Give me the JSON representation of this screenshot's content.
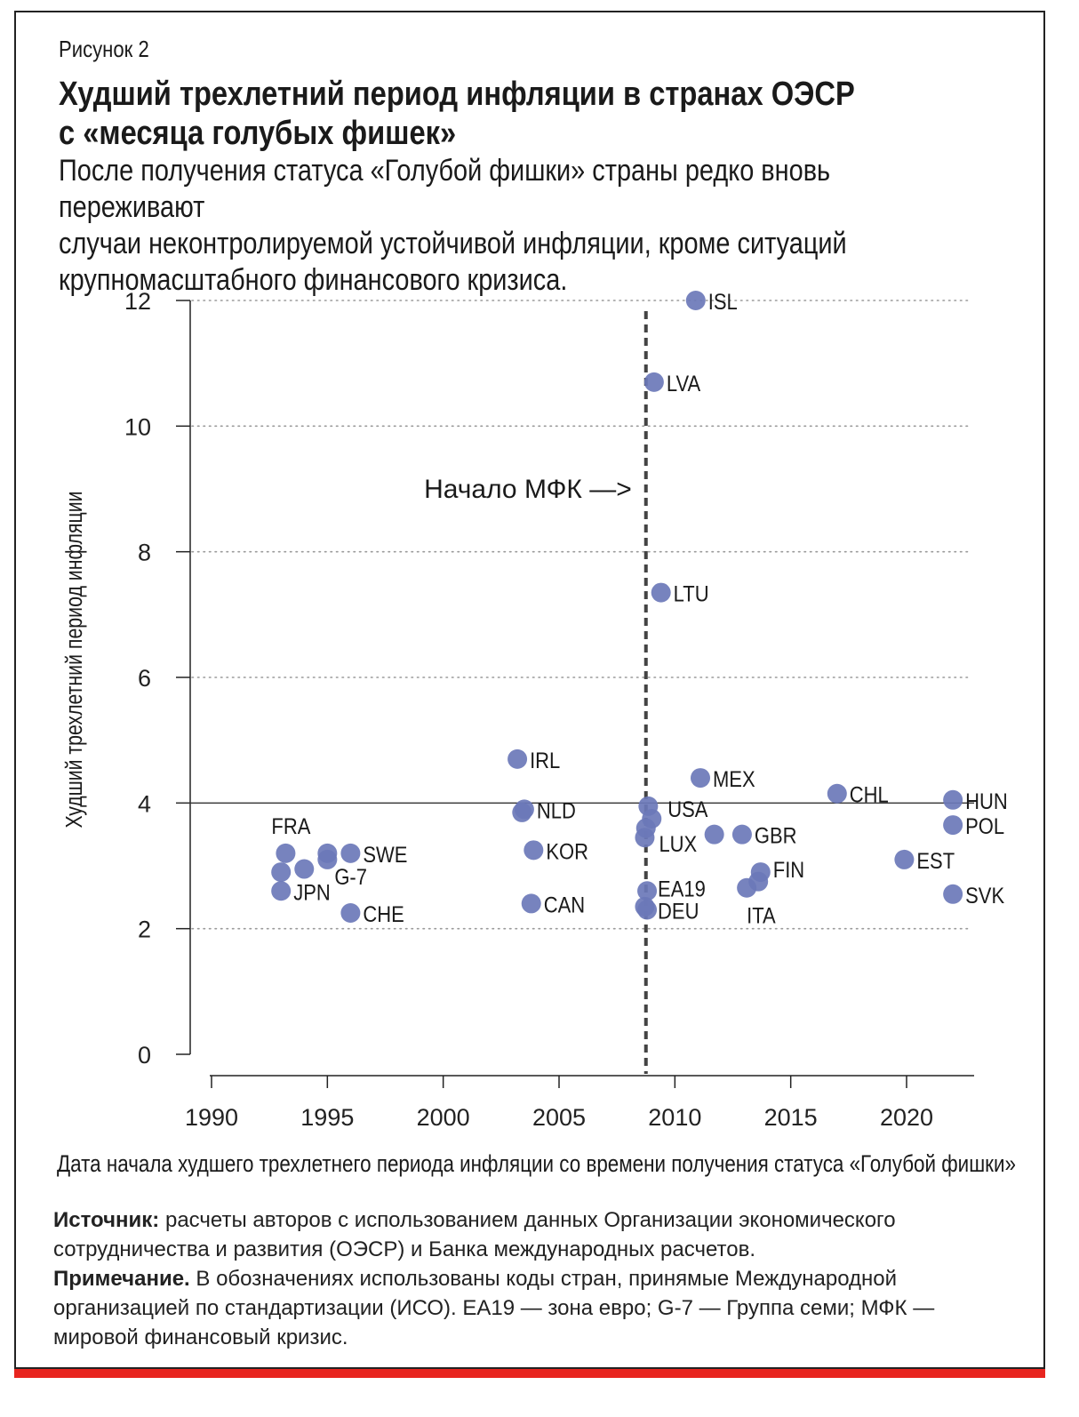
{
  "figure_label": "Рисунок 2",
  "title_line1": "Худший трехлетний период инфляции в странах ОЭСР",
  "title_line2": "с «месяца голубых фишек»",
  "subtitle_line1": "После получения статуса «Голубой фишки» страны редко вновь переживают",
  "subtitle_line2": "случаи неконтролируемой устойчивой инфляции, кроме ситуаций",
  "subtitle_line3": "крупномасштабного финансового кризиса.",
  "source_label": "Источник:",
  "source_text_line1": "расчеты авторов с использованием данных Организации экономического",
  "source_text_line2": "сотрудничества и развития (ОЭСР) и Банка международных расчетов.",
  "note_label": "Примечание.",
  "note_text_line1": "В обозначениях использованы коды стран, принямые Международной",
  "note_text_line2": "организацией по стандартизации (ИСО). EA19 — зона евро; G-7 — Группа семи; МФК —",
  "note_text_line3": "мировой финансовый кризис.",
  "colors": {
    "point": "#6b78b8",
    "accent_red": "#e8251f",
    "axis": "#222222"
  },
  "chart_data": {
    "type": "scatter",
    "xlabel": "Дата начала худшего трехлетнего периода инфляции со времени получения статуса «Голубой фишки»",
    "ylabel": "Худший трехлетний период инфляции",
    "xlim": [
      1989,
      2023
    ],
    "ylim": [
      0,
      12
    ],
    "x_ticks": [
      1990,
      1995,
      2000,
      2005,
      2010,
      2015,
      2020
    ],
    "y_ticks": [
      0,
      2,
      4,
      6,
      8,
      10,
      12
    ],
    "reference_hline": 4,
    "gfc_line_x": 2008.75,
    "gfc_annotation": "Начало МФК —>",
    "points": [
      {
        "label": "ISL",
        "x": 2010.9,
        "y": 12.0
      },
      {
        "label": "LVA",
        "x": 2009.1,
        "y": 10.7
      },
      {
        "label": "LTU",
        "x": 2009.4,
        "y": 7.35
      },
      {
        "label": "IRL",
        "x": 2003.2,
        "y": 4.7
      },
      {
        "label": "MEX",
        "x": 2011.1,
        "y": 4.4
      },
      {
        "label": "CHL",
        "x": 2017.0,
        "y": 4.15
      },
      {
        "label": "HUN",
        "x": 2022.0,
        "y": 4.05
      },
      {
        "label": "",
        "x": 2008.85,
        "y": 3.95
      },
      {
        "label": "NLD",
        "x": 2003.5,
        "y": 3.9
      },
      {
        "label": "",
        "x": 2003.4,
        "y": 3.85
      },
      {
        "label": "USA",
        "x": 2009.0,
        "y": 3.75
      },
      {
        "label": "",
        "x": 2008.75,
        "y": 3.6
      },
      {
        "label": "POL",
        "x": 2022.0,
        "y": 3.65
      },
      {
        "label": "GBR",
        "x": 2012.9,
        "y": 3.5
      },
      {
        "label": "",
        "x": 2011.7,
        "y": 3.5
      },
      {
        "label": "LUX",
        "x": 2008.7,
        "y": 3.45
      },
      {
        "label": "KOR",
        "x": 2003.9,
        "y": 3.25
      },
      {
        "label": "FRA",
        "x": 1993.2,
        "y": 3.2
      },
      {
        "label": "",
        "x": 1995.0,
        "y": 3.2
      },
      {
        "label": "SWE",
        "x": 1996.0,
        "y": 3.2
      },
      {
        "label": "G-7",
        "x": 1995.0,
        "y": 3.1
      },
      {
        "label": "EST",
        "x": 2019.9,
        "y": 3.1
      },
      {
        "label": "",
        "x": 1994.0,
        "y": 2.95
      },
      {
        "label": "",
        "x": 1993.0,
        "y": 2.9
      },
      {
        "label": "FIN",
        "x": 2013.7,
        "y": 2.9
      },
      {
        "label": "",
        "x": 2013.6,
        "y": 2.75
      },
      {
        "label": "ITA",
        "x": 2013.1,
        "y": 2.65
      },
      {
        "label": "JPN",
        "x": 1993.0,
        "y": 2.6
      },
      {
        "label": "EA19",
        "x": 2008.8,
        "y": 2.6
      },
      {
        "label": "SVK",
        "x": 2022.0,
        "y": 2.55
      },
      {
        "label": "CAN",
        "x": 2003.8,
        "y": 2.4
      },
      {
        "label": "",
        "x": 2008.7,
        "y": 2.35
      },
      {
        "label": "DEU",
        "x": 2008.8,
        "y": 2.3
      },
      {
        "label": "CHE",
        "x": 1996.0,
        "y": 2.25
      }
    ]
  }
}
